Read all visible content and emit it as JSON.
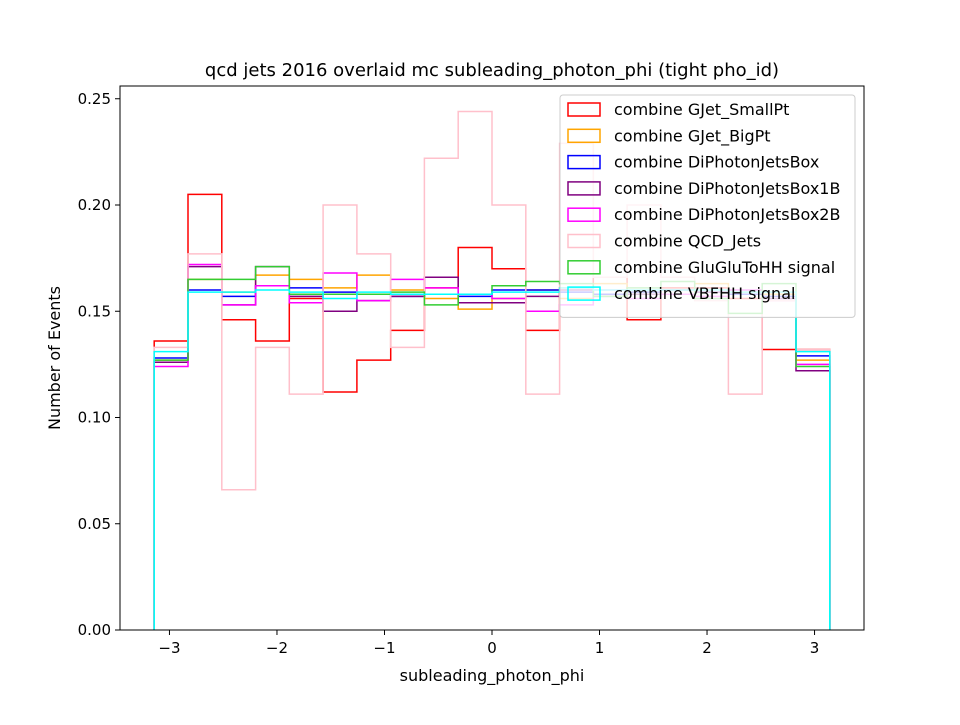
{
  "chart_data": {
    "type": "histogram-step",
    "title": "qcd jets 2016 overlaid mc subleading_photon_phi (tight pho_id)",
    "xlabel": "subleading_photon_phi",
    "ylabel": "Number of Events",
    "xlim": [
      -3.46,
      3.46
    ],
    "ylim": [
      0,
      0.256
    ],
    "xticks": [
      -3,
      -2,
      -1,
      0,
      1,
      2,
      3
    ],
    "xtick_labels": [
      "−3",
      "−2",
      "−1",
      "0",
      "1",
      "2",
      "3"
    ],
    "yticks": [
      0.0,
      0.05,
      0.1,
      0.15,
      0.2,
      0.25
    ],
    "ytick_labels": [
      "0.00",
      "0.05",
      "0.10",
      "0.15",
      "0.20",
      "0.25"
    ],
    "bin_edges": [
      -3.1416,
      -2.8274,
      -2.5133,
      -2.1991,
      -1.885,
      -1.5708,
      -1.2566,
      -0.9425,
      -0.6283,
      -0.3142,
      0.0,
      0.3142,
      0.6283,
      0.9425,
      1.2566,
      1.5708,
      1.885,
      2.1991,
      2.5133,
      2.8274,
      3.1416
    ],
    "legend_position": "upper right",
    "grid": false,
    "series": [
      {
        "name": "combine GJet_SmallPt",
        "color": "#ff0000",
        "values": [
          0.136,
          0.205,
          0.146,
          0.136,
          0.156,
          0.112,
          0.127,
          0.141,
          0.161,
          0.18,
          0.17,
          0.141,
          0.161,
          0.166,
          0.146,
          0.161,
          0.161,
          0.156,
          0.132,
          0.132
        ]
      },
      {
        "name": "combine GJet_BigPt",
        "color": "#ffa500",
        "values": [
          0.127,
          0.165,
          0.159,
          0.167,
          0.165,
          0.161,
          0.167,
          0.16,
          0.156,
          0.151,
          0.156,
          0.16,
          0.156,
          0.163,
          0.158,
          0.16,
          0.163,
          0.159,
          0.158,
          0.127
        ]
      },
      {
        "name": "combine DiPhotonJetsBox",
        "color": "#0000ff",
        "values": [
          0.128,
          0.16,
          0.157,
          0.162,
          0.161,
          0.159,
          0.158,
          0.157,
          0.158,
          0.157,
          0.16,
          0.16,
          0.159,
          0.158,
          0.159,
          0.16,
          0.159,
          0.158,
          0.157,
          0.129
        ]
      },
      {
        "name": "combine DiPhotonJetsBox1B",
        "color": "#800080",
        "values": [
          0.126,
          0.171,
          0.153,
          0.171,
          0.157,
          0.15,
          0.155,
          0.157,
          0.166,
          0.154,
          0.154,
          0.157,
          0.16,
          0.157,
          0.158,
          0.16,
          0.159,
          0.16,
          0.156,
          0.122
        ]
      },
      {
        "name": "combine DiPhotonJetsBox2B",
        "color": "#ff00ff",
        "values": [
          0.124,
          0.172,
          0.153,
          0.162,
          0.154,
          0.168,
          0.155,
          0.165,
          0.161,
          0.158,
          0.156,
          0.15,
          0.153,
          0.16,
          0.156,
          0.158,
          0.157,
          0.16,
          0.155,
          0.125
        ]
      },
      {
        "name": "combine QCD_Jets",
        "color": "#ffc0cb",
        "values": [
          0.133,
          0.177,
          0.066,
          0.133,
          0.111,
          0.2,
          0.177,
          0.133,
          0.222,
          0.244,
          0.2,
          0.111,
          0.229,
          0.166,
          0.2,
          0.166,
          0.155,
          0.111,
          0.155,
          0.132
        ]
      },
      {
        "name": "combine GluGluToHH signal",
        "color": "#32cd32",
        "values": [
          0.127,
          0.165,
          0.165,
          0.171,
          0.158,
          0.158,
          0.158,
          0.159,
          0.153,
          0.158,
          0.162,
          0.164,
          0.163,
          0.157,
          0.161,
          0.164,
          0.156,
          0.149,
          0.163,
          0.124
        ]
      },
      {
        "name": "combine VBFHH signal",
        "color": "#00ffff",
        "values": [
          0.131,
          0.159,
          0.159,
          0.16,
          0.159,
          0.156,
          0.159,
          0.158,
          0.158,
          0.158,
          0.159,
          0.159,
          0.161,
          0.16,
          0.16,
          0.16,
          0.16,
          0.159,
          0.159,
          0.131
        ]
      }
    ]
  }
}
